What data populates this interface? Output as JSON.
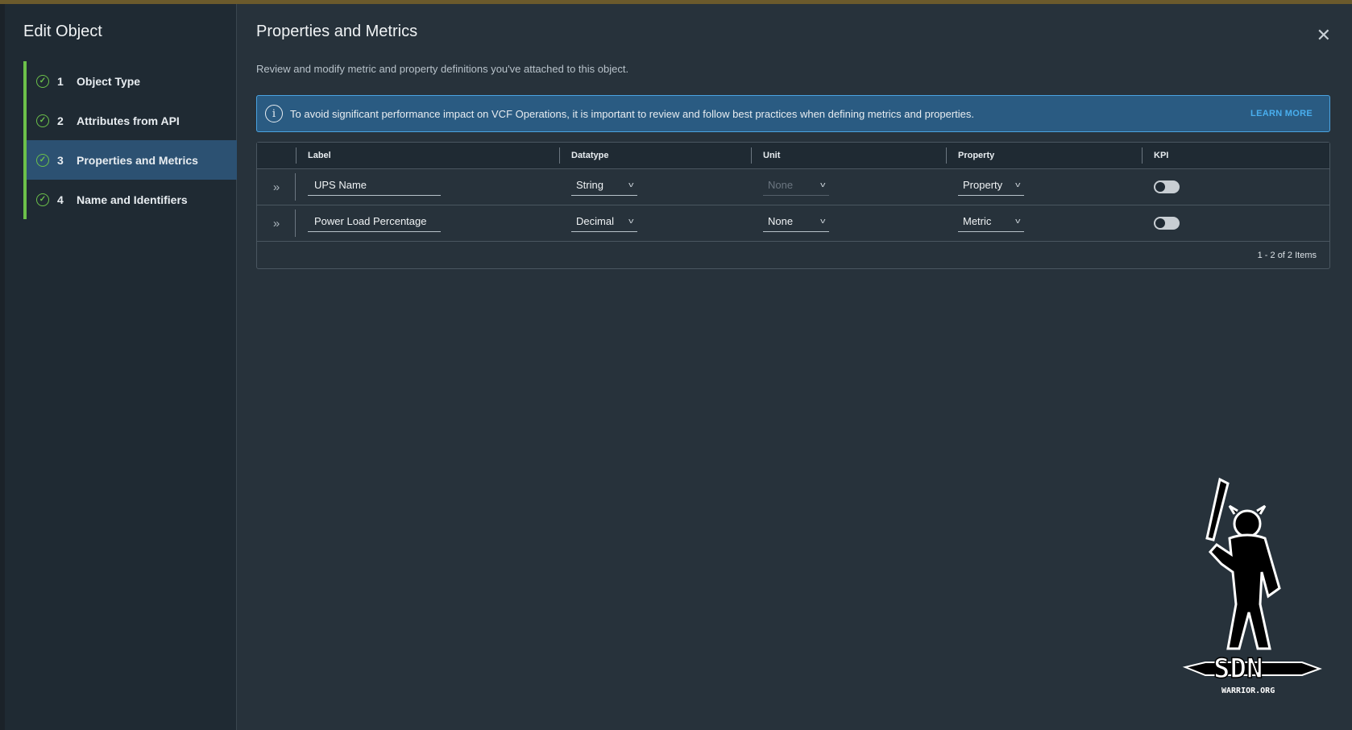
{
  "sidebar": {
    "title": "Edit Object",
    "steps": [
      {
        "num": "1",
        "label": "Object Type",
        "status": "complete"
      },
      {
        "num": "2",
        "label": "Attributes from API",
        "status": "complete"
      },
      {
        "num": "3",
        "label": "Properties and Metrics",
        "status": "active"
      },
      {
        "num": "4",
        "label": "Name and Identifiers",
        "status": "complete"
      }
    ]
  },
  "main": {
    "title": "Properties and Metrics",
    "description": "Review and modify metric and property definitions you've attached to this object.",
    "banner": {
      "icon": "info-icon",
      "text": "To avoid significant performance impact on VCF Operations, it is important to review and follow best practices when defining metrics and properties.",
      "link": "LEARN MORE"
    },
    "table": {
      "columns": [
        "Label",
        "Datatype",
        "Unit",
        "Property",
        "KPI"
      ],
      "rows": [
        {
          "label": "UPS Name",
          "datatype": "String",
          "unit": "None",
          "unit_disabled": true,
          "property": "Property",
          "kpi": false
        },
        {
          "label": "Power Load Percentage",
          "datatype": "Decimal",
          "unit": "None",
          "unit_disabled": false,
          "property": "Metric",
          "kpi": false
        }
      ],
      "footer": "1 - 2 of 2 Items"
    }
  },
  "watermark": {
    "text": "SDN WARRIOR.ORG"
  },
  "colors": {
    "accent": "#49afef",
    "success": "#6cc04a",
    "active_step": "#2c5172",
    "banner": "#2a5b82"
  }
}
